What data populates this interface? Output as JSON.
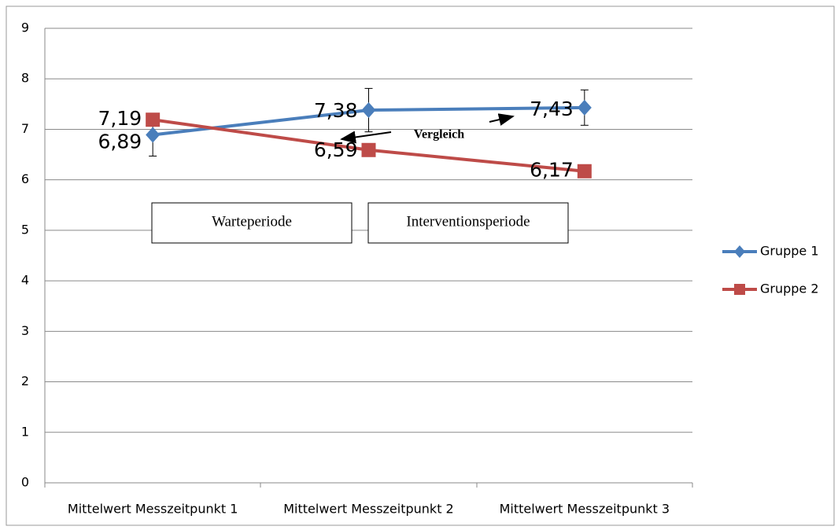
{
  "chart_data": {
    "type": "line",
    "categories": [
      "Mittelwert Messzeitpunkt 1",
      "Mittelwert Messzeitpunkt 2",
      "Mittelwert Messzeitpunkt 3"
    ],
    "series": [
      {
        "name": "Gruppe 1",
        "color": "#4a7ebb",
        "marker": "diamond",
        "values": [
          6.89,
          7.38,
          7.43
        ],
        "value_labels": [
          "6,89",
          "7,38",
          "7,43"
        ],
        "errors": [
          0.42,
          0.43,
          0.35
        ]
      },
      {
        "name": "Gruppe 2",
        "color": "#be4b48",
        "marker": "square",
        "values": [
          7.19,
          6.59,
          6.17
        ],
        "value_labels": [
          "7,19",
          "6,59",
          "6,17"
        ]
      }
    ],
    "ylim": [
      0,
      9
    ],
    "yticks": [
      0,
      1,
      2,
      3,
      4,
      5,
      6,
      7,
      8,
      9
    ],
    "grid": true,
    "legend": "right",
    "annotations": [
      "Warteperiode",
      "Interventionsperiode",
      "Vergleich"
    ]
  }
}
